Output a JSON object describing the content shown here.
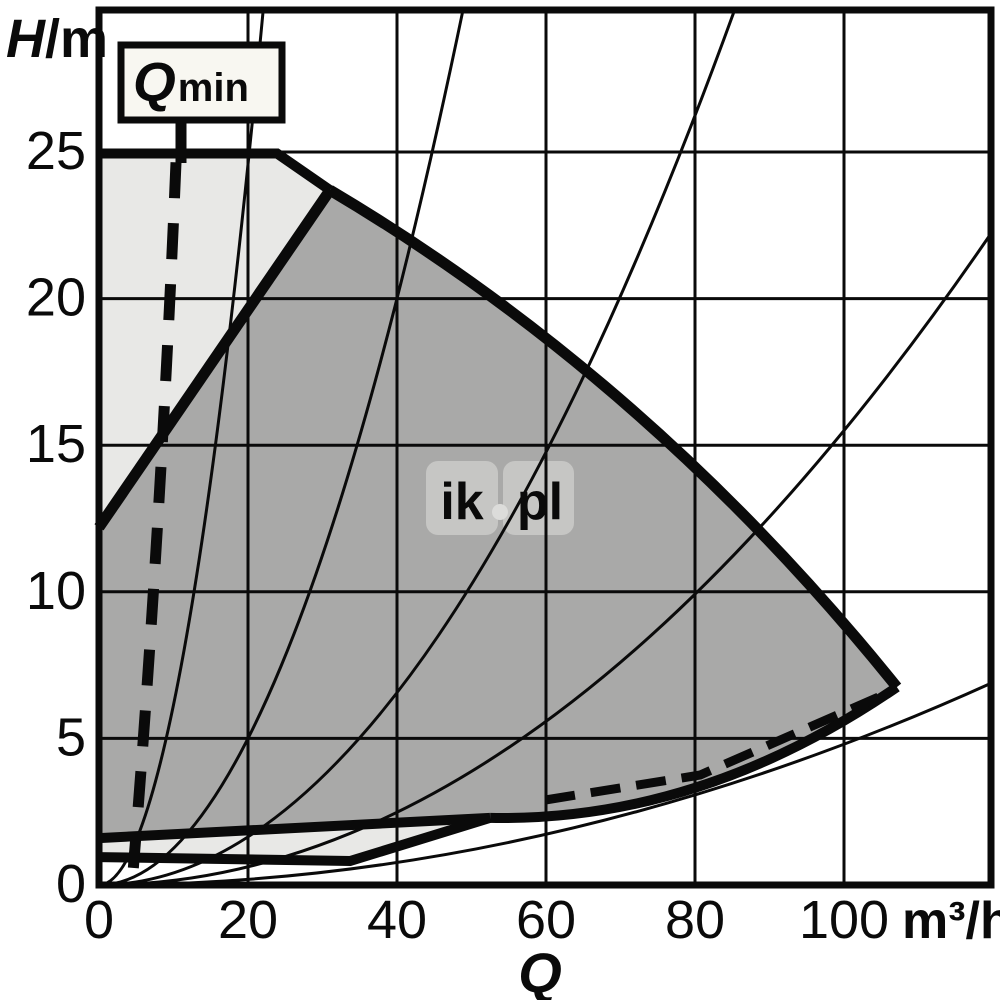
{
  "page": {
    "kind": "pump duty chart"
  },
  "axes": {
    "y_quantity": "H",
    "y_unit": "/m",
    "x_quantity": "Q",
    "x_unit": "m³/h"
  },
  "qmin_box": {
    "label": "Q",
    "sub": "min"
  },
  "watermark": {
    "left": "ik",
    "dot": ".",
    "right": "pl"
  },
  "colors": {
    "field_dark": "#a9a9a8",
    "field_light": "#e8e8e6",
    "line_black": "#0a0a0a",
    "qmin_box_fill": "#f8f7f1",
    "watermark_tile": "#c6c6c4",
    "watermark_text": "#dcdcda"
  },
  "chart_data": {
    "type": "line",
    "title": "",
    "xlabel": "Q",
    "ylabel": "H/m",
    "x_axis": {
      "ticks": [
        0,
        20,
        40,
        60,
        80,
        100
      ],
      "unit": "m³/h",
      "range": [
        0,
        119.7
      ]
    },
    "y_axis": {
      "ticks": [
        0,
        5,
        10,
        15,
        20,
        25
      ],
      "unit": "m",
      "range": [
        0,
        29.83
      ]
    },
    "grid": "on",
    "legend": "none",
    "regions": [
      {
        "name": "upper-reserve-field",
        "fill": "#e8e8e6",
        "path": [
          [
            "M",
            [
              0,
              24.95
            ]
          ],
          [
            "L",
            [
              23.9,
              24.95
            ]
          ],
          [
            "L",
            [
              31,
              23.7
            ]
          ],
          [
            "L",
            [
              0,
              12.2
            ]
          ],
          [
            "Z"
          ]
        ]
      },
      {
        "name": "main-operating-field",
        "fill": "#a9a9a8",
        "path": [
          [
            "M",
            [
              0,
              12.2
            ]
          ],
          [
            "L",
            [
              31,
              23.7
            ]
          ],
          [
            "Q",
            [
              73.96,
              17.22
            ],
            [
              107.1,
              6.75
            ]
          ],
          [
            "Q",
            [
              80.7,
              2.15
            ],
            [
              52.5,
              2.29
            ]
          ],
          [
            "L",
            [
              0,
              1.6
            ]
          ],
          [
            "Z"
          ]
        ]
      },
      {
        "name": "low-head-band",
        "fill": "#e8e8e6",
        "path": [
          [
            "M",
            [
              0,
              1.6
            ]
          ],
          [
            "L",
            [
              52.5,
              2.29
            ]
          ],
          [
            "L",
            [
              33.7,
              0.82
            ]
          ],
          [
            "L",
            [
              0,
              0.95
            ]
          ],
          [
            "Z"
          ]
        ]
      }
    ],
    "boundaries": [
      {
        "name": "max-head-limit-25m",
        "width": 10,
        "path": [
          [
            "M",
            [
              0,
              24.95
            ]
          ],
          [
            "L",
            [
              23.9,
              24.95
            ]
          ],
          [
            "L",
            [
              31,
              23.7
            ]
          ]
        ]
      },
      {
        "name": "left-max-curve",
        "width": 11,
        "path": [
          [
            "M",
            [
              0,
              12.2
            ]
          ],
          [
            "L",
            [
              31,
              23.7
            ]
          ]
        ]
      },
      {
        "name": "max-speed-curve",
        "width": 11,
        "path": [
          [
            "M",
            [
              31,
              23.7
            ]
          ],
          [
            "Q",
            [
              73.96,
              17.22
            ],
            [
              107.1,
              6.75
            ]
          ]
        ]
      },
      {
        "name": "min-speed-curve",
        "width": 10,
        "path": [
          [
            "M",
            [
              107.1,
              6.75
            ]
          ],
          [
            "Q",
            [
              80.7,
              2.15
            ],
            [
              52.5,
              2.29
            ]
          ]
        ]
      },
      {
        "name": "band-top-limit",
        "width": 10,
        "path": [
          [
            "M",
            [
              52.5,
              2.29
            ]
          ],
          [
            "L",
            [
              0,
              1.6
            ]
          ]
        ]
      },
      {
        "name": "band-bottom-limit",
        "width": 10,
        "path": [
          [
            "M",
            [
              0,
              0.95
            ]
          ],
          [
            "L",
            [
              33.7,
              0.82
            ]
          ],
          [
            "L",
            [
              52.5,
              2.29
            ]
          ]
        ]
      },
      {
        "name": "qmin-limit-curve",
        "width": 11,
        "dash": "36 25",
        "path": [
          [
            "M",
            [
              10.34,
              24.65
            ]
          ],
          [
            "C",
            [
              9.0,
              16.5
            ],
            [
              7.0,
              8.0
            ],
            [
              4.56,
              0.44
            ]
          ]
        ]
      },
      {
        "name": "min-flow-dashed-limit",
        "width": 9,
        "dash": "30 16",
        "path": [
          [
            "M",
            [
              59.9,
              2.9
            ]
          ],
          [
            "L",
            [
              80.7,
              3.75
            ]
          ],
          [
            "L",
            [
              104.6,
              6.41
            ]
          ]
        ]
      }
    ],
    "system_curves": {
      "k_values": [
        0.0614,
        0.0125,
        0.0041,
        0.00155,
        0.00048
      ],
      "width": 3,
      "model": "H = k * Q^2 from origin"
    }
  }
}
